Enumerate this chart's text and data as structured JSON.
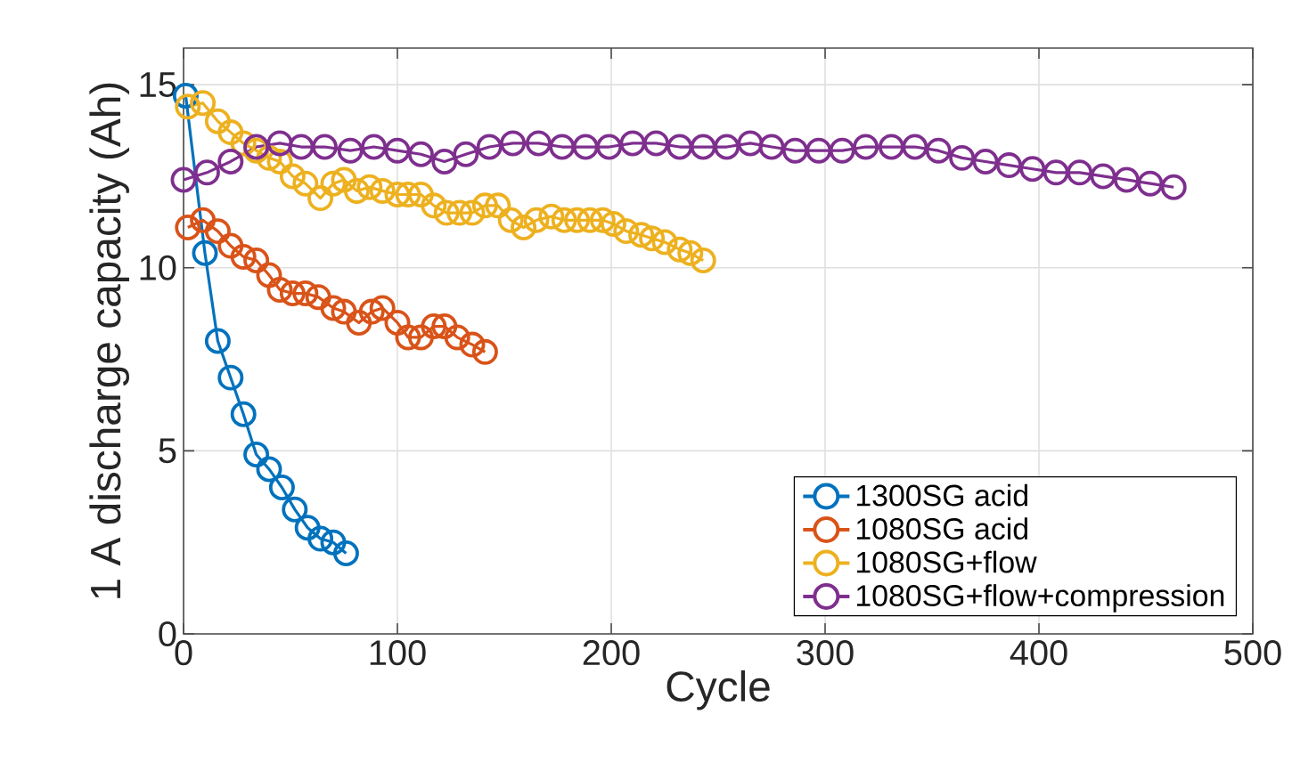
{
  "chart_data": {
    "type": "line",
    "xlabel": "Cycle",
    "ylabel": "1 A discharge capacity (Ah)",
    "xlim": [
      0,
      500
    ],
    "ylim": [
      0,
      16
    ],
    "xticks": [
      0,
      100,
      200,
      300,
      400,
      500
    ],
    "yticks": [
      0,
      5,
      10,
      15
    ],
    "grid": true,
    "legend": "bottom right",
    "marker": "circle",
    "line_style": "solid",
    "series": [
      {
        "name": "1300SG acid",
        "color": "#0072bd",
        "x": [
          1,
          10,
          16,
          22,
          28,
          34,
          40,
          46,
          52,
          58,
          64,
          70,
          76
        ],
        "values": [
          14.7,
          10.4,
          8.0,
          7.0,
          6.0,
          4.9,
          4.5,
          4.0,
          3.4,
          2.9,
          2.6,
          2.5,
          2.2
        ]
      },
      {
        "name": "1080SG acid",
        "color": "#d95319",
        "x": [
          2,
          9,
          16,
          22,
          28,
          34,
          40,
          45,
          51,
          57,
          63,
          70,
          75,
          82,
          88,
          93,
          100,
          105,
          111,
          117,
          122,
          128,
          135,
          141
        ],
        "values": [
          11.1,
          11.3,
          11.0,
          10.6,
          10.3,
          10.2,
          9.8,
          9.4,
          9.3,
          9.3,
          9.2,
          8.9,
          8.8,
          8.5,
          8.8,
          8.9,
          8.5,
          8.1,
          8.1,
          8.4,
          8.4,
          8.1,
          7.9,
          7.7
        ]
      },
      {
        "name": "1080SG+flow",
        "color": "#edb120",
        "x": [
          2,
          9,
          16,
          22,
          28,
          34,
          40,
          45,
          51,
          57,
          64,
          70,
          75,
          81,
          87,
          93,
          100,
          105,
          111,
          117,
          123,
          129,
          135,
          141,
          147,
          153,
          159,
          165,
          172,
          178,
          184,
          190,
          196,
          201,
          207,
          214,
          219,
          225,
          232,
          237,
          243
        ],
        "values": [
          14.4,
          14.5,
          14.0,
          13.7,
          13.4,
          13.2,
          13.0,
          12.9,
          12.5,
          12.3,
          11.9,
          12.3,
          12.4,
          12.1,
          12.2,
          12.1,
          12.0,
          12.0,
          12.0,
          11.7,
          11.5,
          11.5,
          11.5,
          11.7,
          11.7,
          11.3,
          11.1,
          11.3,
          11.4,
          11.3,
          11.3,
          11.3,
          11.3,
          11.2,
          11.0,
          10.9,
          10.8,
          10.7,
          10.5,
          10.4,
          10.2
        ]
      },
      {
        "name": "1080SG+flow+compression",
        "color": "#7e2f8e",
        "x": [
          0,
          11,
          22,
          34,
          45,
          55,
          66,
          78,
          89,
          100,
          111,
          122,
          132,
          143,
          154,
          166,
          177,
          188,
          199,
          210,
          221,
          232,
          243,
          254,
          265,
          275,
          286,
          297,
          308,
          319,
          331,
          342,
          353,
          364,
          375,
          386,
          397,
          408,
          419,
          430,
          441,
          452,
          463
        ],
        "values": [
          12.4,
          12.6,
          12.9,
          13.3,
          13.4,
          13.3,
          13.3,
          13.2,
          13.3,
          13.2,
          13.1,
          12.9,
          13.1,
          13.3,
          13.4,
          13.4,
          13.3,
          13.3,
          13.3,
          13.4,
          13.4,
          13.3,
          13.3,
          13.3,
          13.4,
          13.3,
          13.2,
          13.2,
          13.2,
          13.3,
          13.3,
          13.3,
          13.2,
          13.0,
          12.9,
          12.8,
          12.7,
          12.6,
          12.6,
          12.5,
          12.4,
          12.3,
          12.2
        ]
      }
    ]
  }
}
